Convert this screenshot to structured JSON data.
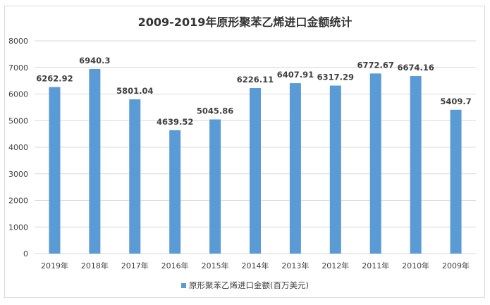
{
  "chart_data": {
    "type": "bar",
    "title": "2009-2019年原形聚苯乙烯进口金额统计",
    "categories": [
      "2019年",
      "2018年",
      "2017年",
      "2016年",
      "2015年",
      "2014年",
      "2013年",
      "2012年",
      "2011年",
      "2010年",
      "2009年"
    ],
    "series": [
      {
        "name": "原形聚苯乙烯进口金额(百万美元)",
        "values": [
          6262.92,
          6940.3,
          5801.04,
          4639.52,
          5045.86,
          6226.11,
          6407.91,
          6317.29,
          6772.67,
          6674.16,
          5409.7
        ]
      }
    ],
    "value_labels": [
      "6262.92",
      "6940.3",
      "5801.04",
      "4639.52",
      "5045.86",
      "6226.11",
      "6407.91",
      "6317.29",
      "6772.67",
      "6674.16",
      "5409.7"
    ],
    "yticks": [
      0,
      1000,
      2000,
      3000,
      4000,
      5000,
      6000,
      7000,
      8000
    ],
    "ylim": [
      0,
      8000
    ],
    "xlabel": "",
    "ylabel": "",
    "grid": true,
    "legend_position": "bottom",
    "color": "#5b9bd5"
  }
}
